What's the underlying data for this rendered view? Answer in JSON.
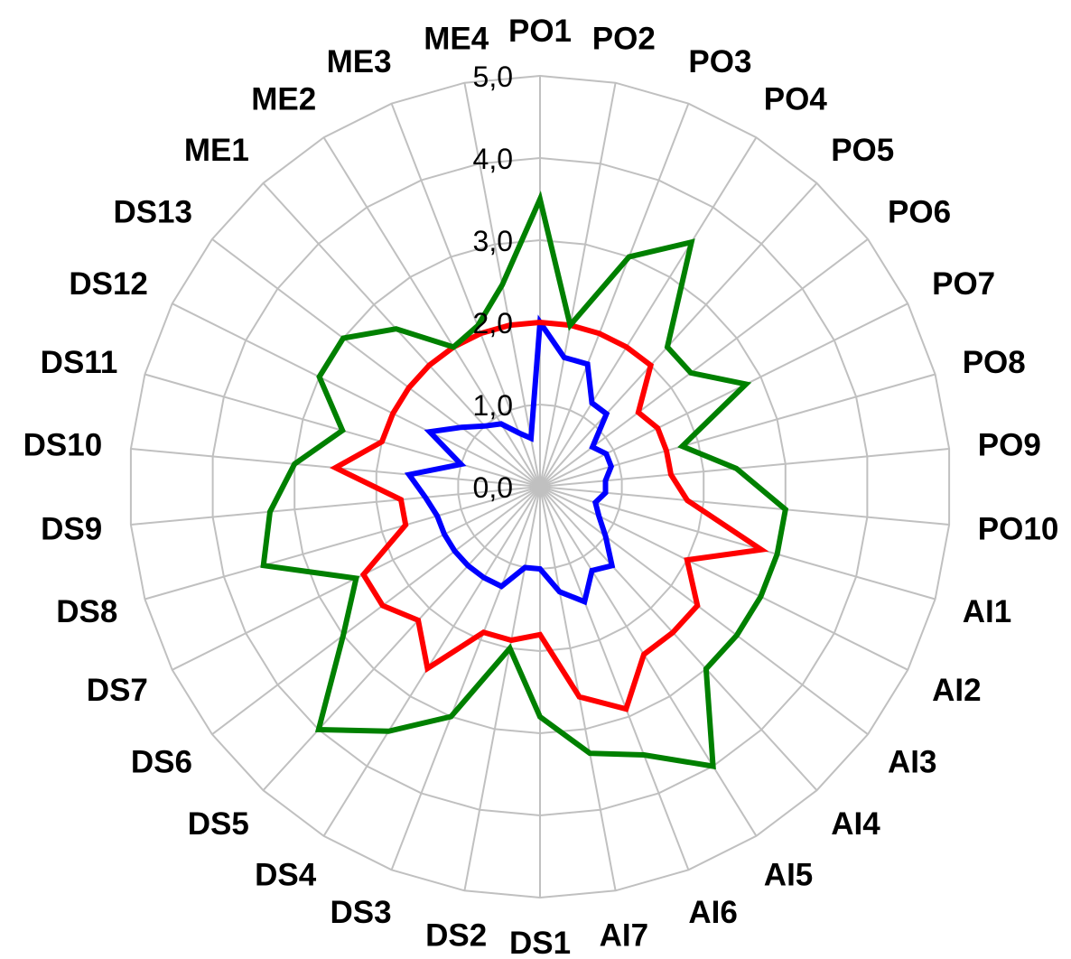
{
  "chart_data": {
    "type": "radar",
    "title": "",
    "categories": [
      "PO1",
      "PO2",
      "PO3",
      "PO4",
      "PO5",
      "PO6",
      "PO7",
      "PO8",
      "PO9",
      "PO10",
      "AI1",
      "AI2",
      "AI3",
      "AI4",
      "AI5",
      "AI6",
      "AI7",
      "DS1",
      "DS2",
      "DS3",
      "DS4",
      "DS5",
      "DS6",
      "DS7",
      "DS8",
      "DS9",
      "DS10",
      "DS11",
      "DS12",
      "DS13",
      "ME1",
      "ME2",
      "ME3",
      "ME4"
    ],
    "rlim": [
      0,
      5
    ],
    "ticks": [
      "0,0",
      "1,0",
      "2,0",
      "3,0",
      "4,0",
      "5,0"
    ],
    "grid": true,
    "legend": "none",
    "series": [
      {
        "color": "#0000ff",
        "values": [
          2.0,
          1.6,
          1.6,
          1.2,
          1.2,
          0.8,
          0.9,
          0.9,
          0.8,
          0.8,
          0.7,
          0.8,
          1.0,
          1.3,
          1.2,
          1.5,
          1.3,
          1.0,
          1.0,
          1.3,
          1.3,
          1.3,
          1.3,
          1.3,
          1.3,
          1.4,
          1.6,
          1.0,
          1.5,
          1.2,
          1.0,
          0.9,
          0.7,
          0.6
        ]
      },
      {
        "color": "#ff0000",
        "values": [
          2.0,
          2.0,
          2.0,
          2.0,
          2.0,
          1.5,
          1.6,
          1.6,
          1.6,
          1.8,
          2.8,
          2.0,
          2.4,
          2.4,
          2.4,
          2.9,
          2.6,
          1.8,
          1.9,
          1.9,
          2.6,
          2.2,
          2.4,
          2.4,
          1.7,
          1.7,
          2.5,
          2.0,
          2.0,
          2.0,
          2.0,
          2.0,
          2.0,
          2.0
        ]
      },
      {
        "color": "#008000",
        "values": [
          3.5,
          2.0,
          3.0,
          3.5,
          2.3,
          2.3,
          2.8,
          1.8,
          2.4,
          3.0,
          3.0,
          3.0,
          3.0,
          3.0,
          4.0,
          3.5,
          3.3,
          2.8,
          2.0,
          3.0,
          3.5,
          4.0,
          3.0,
          2.5,
          3.5,
          3.3,
          3.0,
          2.5,
          3.0,
          3.0,
          2.6,
          2.0,
          2.1,
          2.5
        ]
      }
    ]
  }
}
